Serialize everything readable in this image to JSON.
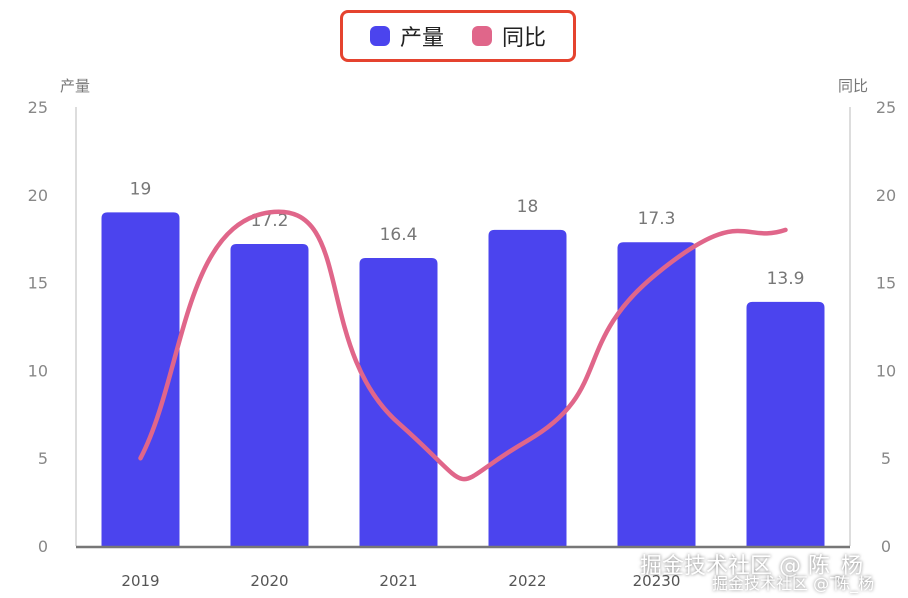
{
  "chart_data": {
    "type": "bar",
    "categories": [
      "2019",
      "2020",
      "2021",
      "2022",
      "20230",
      ""
    ],
    "series": [
      {
        "name": "产量",
        "type": "bar",
        "axis": "left",
        "values": [
          19,
          17.2,
          16.4,
          18,
          17.3,
          13.9
        ]
      },
      {
        "name": "同比",
        "type": "line",
        "axis": "right",
        "values": [
          5,
          19,
          7,
          6,
          15.5,
          18
        ]
      }
    ],
    "data_labels": [
      "19",
      "17.2",
      "16.4",
      "18",
      "17.3",
      "13.9"
    ],
    "y_left": {
      "label": "产量",
      "ticks": [
        "0",
        "5",
        "10",
        "15",
        "20",
        "25"
      ],
      "range": [
        0,
        25
      ]
    },
    "y_right": {
      "label": "同比",
      "ticks": [
        "0",
        "5",
        "10",
        "15",
        "20",
        "25"
      ],
      "range": [
        0,
        25
      ]
    },
    "legend_position": "top-center",
    "grid": false
  },
  "colors": {
    "bar": "#4b44ee",
    "line": "#e0668a",
    "legend_border": "#e5432f"
  },
  "watermark": {
    "line1": "掘金技术社区 @ 陈_杨",
    "line2": "掘金技术社区 @ 陈_杨"
  }
}
